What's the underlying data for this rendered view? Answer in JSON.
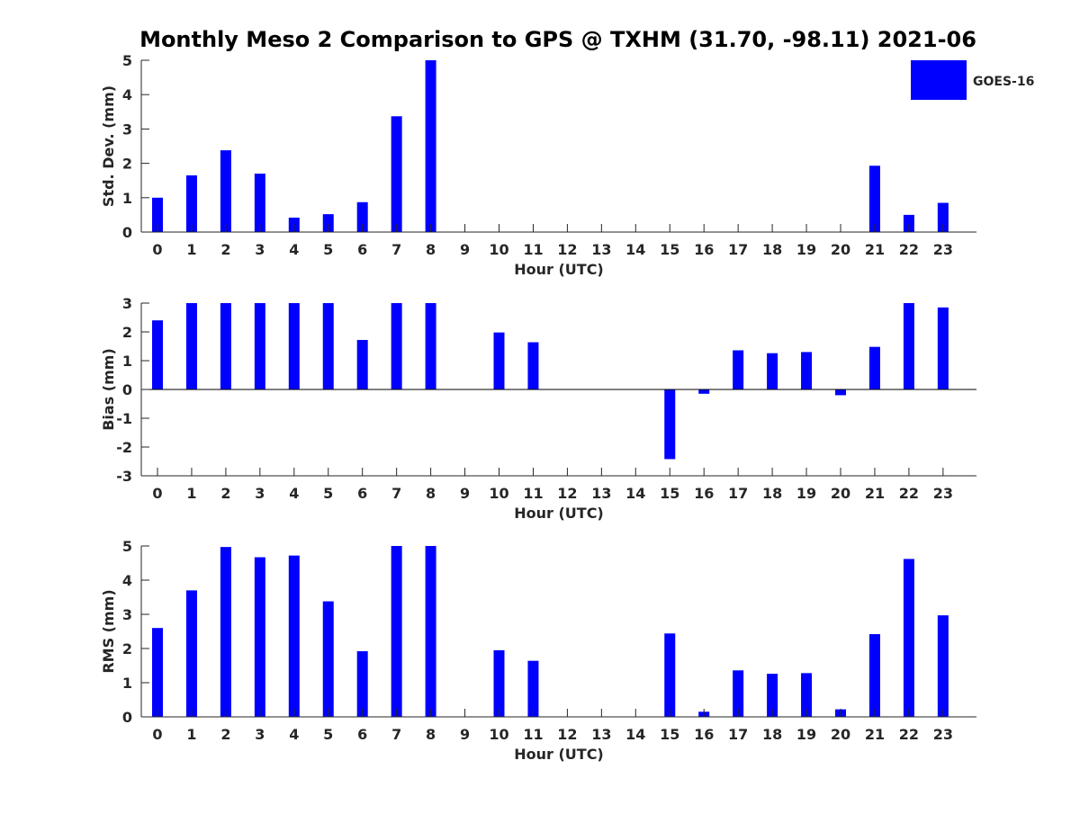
{
  "title": "Monthly Meso 2 Comparison to GPS @ TXHM (31.70, -98.11) 2021-06",
  "legend": {
    "label": "GOES-16",
    "color": "#0000ff"
  },
  "bar_color": "#0000ff",
  "chart_data": [
    {
      "type": "bar",
      "xlabel": "Hour (UTC)",
      "ylabel": "Std. Dev. (mm)",
      "ylim": [
        0,
        5
      ],
      "yticks": [
        0,
        1,
        2,
        3,
        4,
        5
      ],
      "categories": [
        "0",
        "1",
        "2",
        "3",
        "4",
        "5",
        "6",
        "7",
        "8",
        "9",
        "10",
        "11",
        "12",
        "13",
        "14",
        "15",
        "16",
        "17",
        "18",
        "19",
        "20",
        "21",
        "22",
        "23"
      ],
      "values": [
        1.0,
        1.65,
        2.38,
        1.7,
        0.42,
        0.52,
        0.87,
        3.37,
        5.0,
        0,
        0,
        0,
        0,
        0,
        0,
        0,
        0,
        0,
        0,
        0,
        0,
        1.93,
        0.5,
        0.85
      ],
      "legend": "top-right"
    },
    {
      "type": "bar",
      "xlabel": "Hour (UTC)",
      "ylabel": "Bias (mm)",
      "ylim": [
        -3,
        3
      ],
      "yticks": [
        -3,
        -2,
        -1,
        0,
        1,
        2,
        3
      ],
      "categories": [
        "0",
        "1",
        "2",
        "3",
        "4",
        "5",
        "6",
        "7",
        "8",
        "9",
        "10",
        "11",
        "12",
        "13",
        "14",
        "15",
        "16",
        "17",
        "18",
        "19",
        "20",
        "21",
        "22",
        "23"
      ],
      "values": [
        2.4,
        3.0,
        3.0,
        3.0,
        3.0,
        3.0,
        1.72,
        3.0,
        3.0,
        0,
        1.98,
        1.64,
        0,
        0,
        0,
        -2.42,
        -0.15,
        1.36,
        1.26,
        1.3,
        -0.2,
        1.48,
        3.0,
        2.85
      ]
    },
    {
      "type": "bar",
      "xlabel": "Hour (UTC)",
      "ylabel": "RMS (mm)",
      "ylim": [
        0,
        5
      ],
      "yticks": [
        0,
        1,
        2,
        3,
        4,
        5
      ],
      "categories": [
        "0",
        "1",
        "2",
        "3",
        "4",
        "5",
        "6",
        "7",
        "8",
        "9",
        "10",
        "11",
        "12",
        "13",
        "14",
        "15",
        "16",
        "17",
        "18",
        "19",
        "20",
        "21",
        "22",
        "23"
      ],
      "values": [
        2.6,
        3.7,
        4.97,
        4.67,
        4.72,
        3.38,
        1.92,
        5.0,
        5.0,
        0,
        1.95,
        1.64,
        0,
        0,
        0,
        2.44,
        0.15,
        1.36,
        1.26,
        1.28,
        0.22,
        2.42,
        4.62,
        2.97
      ]
    }
  ]
}
